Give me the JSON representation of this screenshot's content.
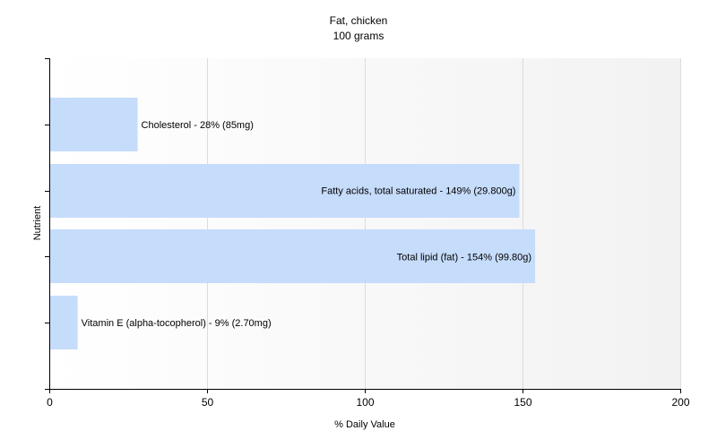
{
  "chart_data": {
    "type": "bar",
    "orientation": "horizontal",
    "title": "Fat, chicken",
    "subtitle": "100 grams",
    "xlabel": "% Daily Value",
    "ylabel": "Nutrient",
    "xlim": [
      0,
      200
    ],
    "xticks": [
      0,
      50,
      100,
      150,
      200
    ],
    "grid": true,
    "categories": [
      "Cholesterol",
      "Fatty acids, total saturated",
      "Total lipid (fat)",
      "Vitamin E (alpha-tocopherol)"
    ],
    "values": [
      28,
      149,
      154,
      9
    ],
    "labels": [
      "Cholesterol - 28% (85mg)",
      "Fatty acids, total saturated - 149% (29.800g)",
      "Total lipid (fat) - 154% (99.80g)",
      "Vitamin E (alpha-tocopherol) - 9% (2.70mg)"
    ],
    "colors": {
      "bar": "#c6dcfb",
      "grid": "#dcdcdc",
      "axis": "#000000",
      "plot_bg_start": "#ffffff",
      "plot_bg_end": "#f2f2f2"
    }
  }
}
